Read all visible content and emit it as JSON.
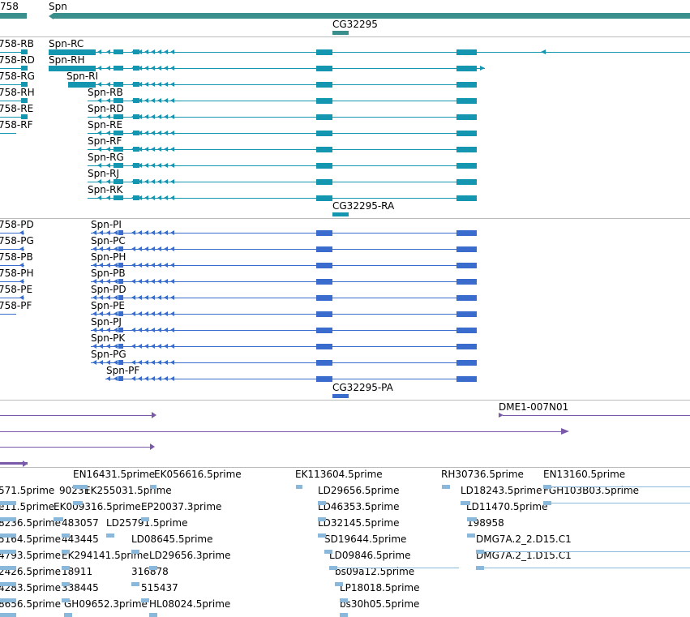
{
  "colors": {
    "gene": "#3a8f8c",
    "transcript": "#1596b0",
    "protein": "#3a6ccd",
    "clone": "#7a5aa8",
    "est": "#8ab8da",
    "separator": "#bbbbbb"
  },
  "tracks": {
    "gene": {
      "labels": [
        "758",
        "Spn",
        "CG32295"
      ]
    },
    "transcripts": {
      "labels": [
        "758-RB",
        "758-RD",
        "758-RG",
        "758-RH",
        "758-RE",
        "758-RF",
        "Spn-RC",
        "Spn-RH",
        "Spn-RI",
        "Spn-RB",
        "Spn-RD",
        "Spn-RE",
        "Spn-RF",
        "Spn-RG",
        "Spn-RJ",
        "Spn-RK",
        "CG32295-RA"
      ]
    },
    "proteins": {
      "labels": [
        "758-PD",
        "758-PG",
        "758-PB",
        "758-PH",
        "758-PE",
        "758-PF",
        "Spn-PI",
        "Spn-PC",
        "Spn-PH",
        "Spn-PB",
        "Spn-PD",
        "Spn-PE",
        "Spn-PJ",
        "Spn-PK",
        "Spn-PG",
        "Spn-PF",
        "CG32295-PA"
      ]
    },
    "clones": {
      "labels": [
        "DME1-007N01"
      ]
    },
    "ests": {
      "labels": [
        "EN16431.5prime",
        "EK056616.5prime",
        "EK113604.5prime",
        "RH30736.5prime",
        "EN13160.5prime",
        "571.5prime",
        "90231",
        "EK255031.5prime",
        "LD29656.5prime",
        "LD18243.5prime",
        "FGH103B03.5prime",
        "e11.5prime",
        "EK009316.5prime",
        "EP20037.3prime",
        "LD46353.5prime",
        "LD11470.5prime",
        "8236.5prime",
        "483057",
        "LD25791.5prime",
        "LD32145.5prime",
        "198958",
        "5164.5prime",
        "443445",
        "LD08645.5prime",
        "SD19644.5prime",
        "DMG7A.2_2.D15.C1",
        "4793.5prime",
        "EK294141.5prime",
        "LD29656.3prime",
        "LD09846.5prime",
        "DMG7A.2_1.D15.C1",
        "2426.5prime",
        "18911",
        "316878",
        "bs09a12.5prime",
        "4283.5prime",
        "338445",
        "515437",
        "LP18018.5prime",
        "8656.5prime",
        "GH09652.3prime",
        "HL08024.5prime",
        "bs30h05.5prime"
      ]
    }
  }
}
